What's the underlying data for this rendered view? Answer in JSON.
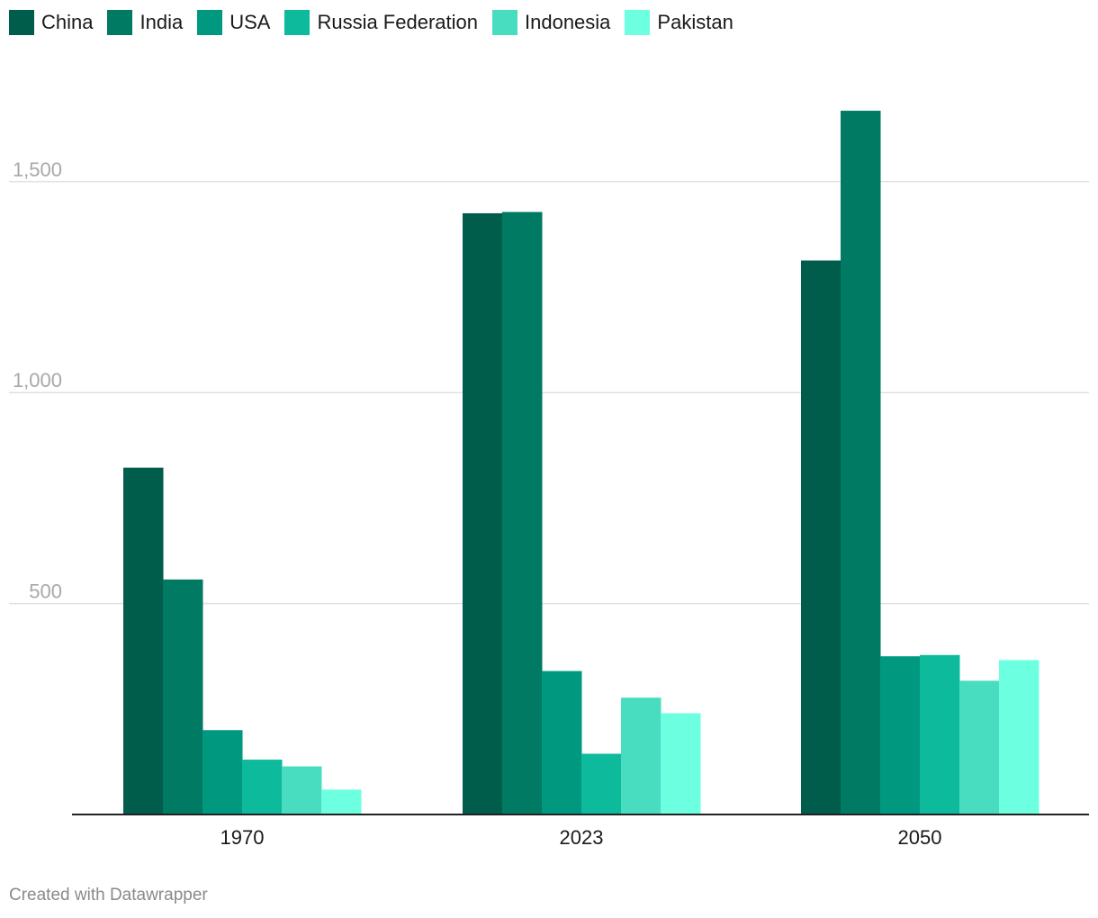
{
  "chart_data": {
    "type": "bar",
    "categories": [
      "1970",
      "2023",
      "2050"
    ],
    "series": [
      {
        "name": "China",
        "color": "#005c4b",
        "values": [
          822,
          1425,
          1313
        ]
      },
      {
        "name": "India",
        "color": "#007a63",
        "values": [
          557,
          1428,
          1668
        ]
      },
      {
        "name": "USA",
        "color": "#00997f",
        "values": [
          200,
          340,
          375
        ]
      },
      {
        "name": "Russia Federation",
        "color": "#0dbb9c",
        "values": [
          130,
          144,
          378
        ]
      },
      {
        "name": "Indonesia",
        "color": "#48ddc0",
        "values": [
          114,
          277,
          317
        ]
      },
      {
        "name": "Pakistan",
        "color": "#6cffe0",
        "values": [
          59,
          240,
          366
        ]
      }
    ],
    "yticks": [
      500,
      1000,
      1500
    ],
    "ytick_labels": [
      "500",
      "1,000",
      "1,500"
    ],
    "ylim": [
      0,
      1700
    ],
    "grid": true,
    "legend_position": "top-left"
  },
  "footer": "Created with Datawrapper"
}
